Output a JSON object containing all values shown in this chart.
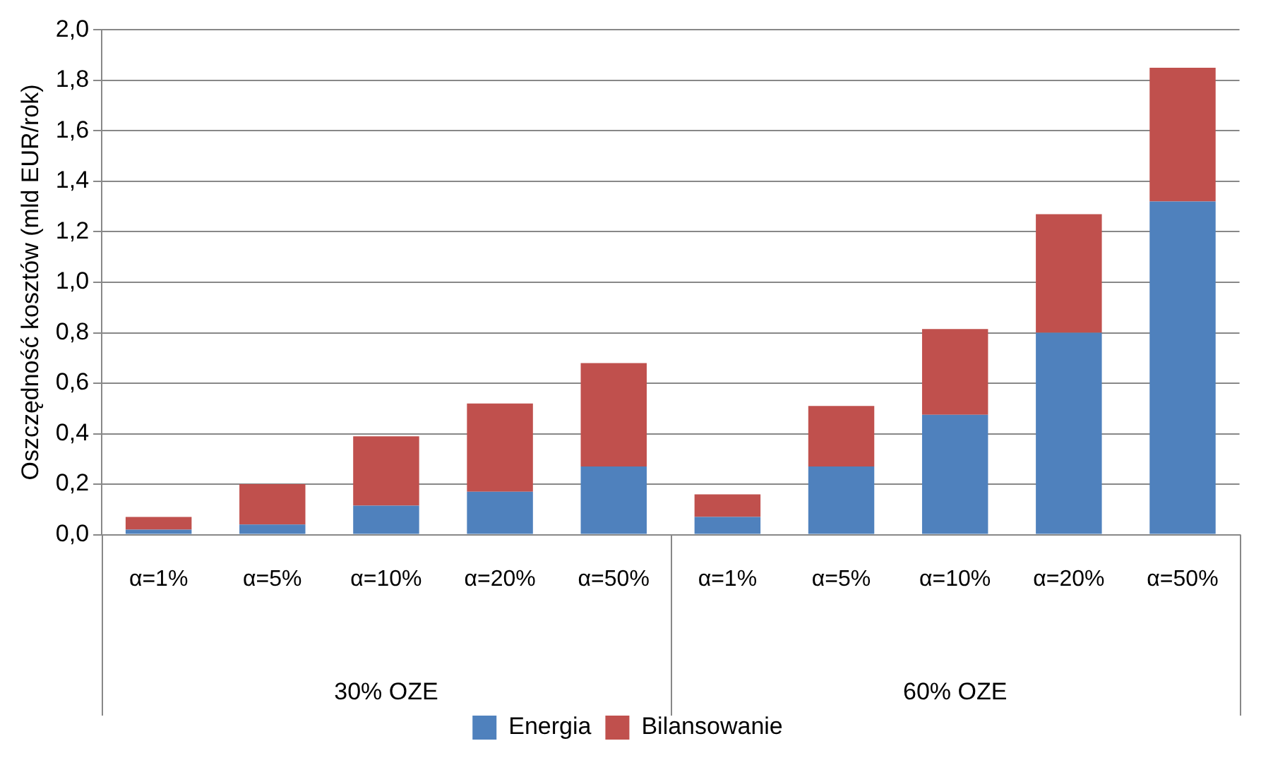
{
  "chart_data": {
    "type": "bar",
    "stacked": true,
    "ylabel": "Oszczędność kosztów (mld EUR/rok)",
    "categories": [
      "α=1%",
      "α=5%",
      "α=10%",
      "α=20%",
      "α=50%",
      "α=1%",
      "α=5%",
      "α=10%",
      "α=20%",
      "α=50%"
    ],
    "series": [
      {
        "name": "Energia",
        "color": "#4f81bd",
        "values": [
          0.02,
          0.04,
          0.115,
          0.17,
          0.27,
          0.07,
          0.27,
          0.475,
          0.8,
          1.32
        ]
      },
      {
        "name": "Bilansowanie",
        "color": "#c0504d",
        "values": [
          0.05,
          0.16,
          0.275,
          0.35,
          0.41,
          0.09,
          0.24,
          0.34,
          0.47,
          0.53
        ]
      }
    ],
    "ylim": [
      0,
      2
    ],
    "yticks": [
      {
        "value": 0,
        "label": "0,0"
      },
      {
        "value": 0.2,
        "label": "0,2"
      },
      {
        "value": 0.4,
        "label": "0,4"
      },
      {
        "value": 0.6,
        "label": "0,6"
      },
      {
        "value": 0.8,
        "label": "0,8"
      },
      {
        "value": 1,
        "label": "1,0"
      },
      {
        "value": 1.2,
        "label": "1,2"
      },
      {
        "value": 1.4,
        "label": "1,4"
      },
      {
        "value": 1.6,
        "label": "1,6"
      },
      {
        "value": 1.8,
        "label": "1,8"
      },
      {
        "value": 2,
        "label": "2,0"
      }
    ],
    "annotations": [
      "30% OZE",
      "60% OZE"
    ],
    "grid": "y",
    "legend": "bottom"
  }
}
